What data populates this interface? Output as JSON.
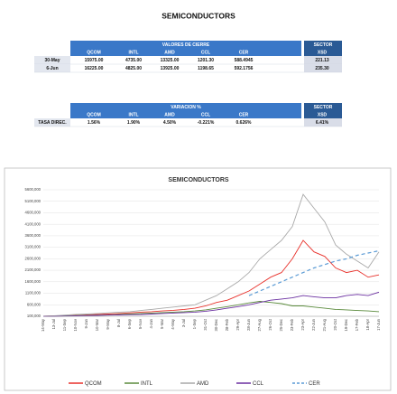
{
  "title": "SEMICONDUCTORS",
  "closing_table": {
    "header": "VALORES DE CIERRE",
    "sector_header": "SECTOR",
    "columns": [
      "QCOM",
      "INTL",
      "AMD",
      "CCL",
      "CER",
      "XSD"
    ],
    "rows": [
      {
        "label": "30-May",
        "cells": [
          "15975.00",
          "4735.00",
          "13325.00",
          "1201.30",
          "588.4945",
          "221.13"
        ]
      },
      {
        "label": "6-Jun",
        "cells": [
          "16225.00",
          "4825.00",
          "13925.00",
          "1198.65",
          "592.1756",
          "235.30"
        ]
      }
    ]
  },
  "variation_table": {
    "header": "VARIACION %",
    "sector_header": "SECTOR",
    "columns": [
      "QCOM",
      "INTL",
      "AMD",
      "CCL",
      "CER",
      "XSD"
    ],
    "rows": [
      {
        "label": "TASA DIREC.",
        "cells": [
          "1.56%",
          "1.90%",
          "4.50%",
          "-0.221%",
          "0.626%",
          "6.41%"
        ]
      }
    ]
  },
  "chart_data": {
    "type": "line",
    "title": "SEMICONDUCTORS",
    "categories": [
      "14-May",
      "13-Jul",
      "11-Sep",
      "10-Nov",
      "9-Jan",
      "10-Mar",
      "9-May",
      "8-Jul",
      "6-Sep",
      "5-Nov",
      "4-Jan",
      "5-Mar",
      "4-May",
      "3-Jul",
      "1-Sep",
      "31-Oct",
      "30-Dec",
      "28-Feb",
      "29-Apr",
      "28-Jun",
      "27-Aug",
      "26-Oct",
      "25-Dec",
      "23-Feb",
      "23-Apr",
      "22-Jun",
      "21-Aug",
      "20-Oct",
      "19-Dec",
      "17-Feb",
      "18-Apr",
      "17-Jun"
    ],
    "ylim": [
      100000,
      5600000
    ],
    "yticks": [
      {
        "value": 100000,
        "label": "100,000"
      },
      {
        "value": 600000,
        "label": "600,000"
      },
      {
        "value": 1100000,
        "label": "1100,000"
      },
      {
        "value": 1600000,
        "label": "1600,000"
      },
      {
        "value": 2100000,
        "label": "2100,000"
      },
      {
        "value": 2600000,
        "label": "2600,000"
      },
      {
        "value": 3100000,
        "label": "3100,000"
      },
      {
        "value": 3600000,
        "label": "3600,000"
      },
      {
        "value": 4100000,
        "label": "4100,000"
      },
      {
        "value": 4600000,
        "label": "4600,000"
      },
      {
        "value": 5100000,
        "label": "5100,000"
      },
      {
        "value": 5600000,
        "label": "5600,000"
      }
    ],
    "grid": true,
    "legend": "bottom",
    "series": [
      {
        "name": "QCOM",
        "color": "#e8302a",
        "dashed": false,
        "values": [
          100000,
          110000,
          120000,
          140000,
          160000,
          180000,
          200000,
          220000,
          250000,
          280000,
          300000,
          330000,
          360000,
          400000,
          450000,
          550000,
          700000,
          800000,
          1000000,
          1200000,
          1500000,
          1800000,
          2000000,
          2600000,
          3400000,
          2900000,
          2700000,
          2200000,
          2000000,
          2100000,
          1800000,
          1900000
        ]
      },
      {
        "name": "INTL",
        "color": "#5a8a3c",
        "dashed": false,
        "values": [
          100000,
          110000,
          120000,
          130000,
          140000,
          150000,
          160000,
          180000,
          200000,
          220000,
          240000,
          260000,
          280000,
          300000,
          330000,
          380000,
          450000,
          520000,
          600000,
          680000,
          750000,
          700000,
          650000,
          550000,
          550000,
          500000,
          450000,
          400000,
          380000,
          350000,
          330000,
          300000
        ]
      },
      {
        "name": "AMD",
        "color": "#a9a9a9",
        "dashed": false,
        "values": [
          100000,
          120000,
          150000,
          180000,
          200000,
          220000,
          250000,
          280000,
          300000,
          350000,
          400000,
          450000,
          500000,
          550000,
          600000,
          800000,
          1000000,
          1300000,
          1600000,
          2000000,
          2600000,
          3000000,
          3400000,
          4000000,
          5400000,
          4800000,
          4200000,
          3200000,
          2800000,
          2500000,
          2200000,
          2900000
        ]
      },
      {
        "name": "CCL",
        "color": "#6a2fa0",
        "dashed": false,
        "values": [
          100000,
          100000,
          110000,
          120000,
          130000,
          140000,
          150000,
          160000,
          170000,
          180000,
          200000,
          220000,
          240000,
          260000,
          280000,
          320000,
          380000,
          450000,
          520000,
          600000,
          700000,
          800000,
          850000,
          900000,
          1000000,
          950000,
          900000,
          900000,
          1000000,
          1050000,
          1000000,
          1150000
        ]
      },
      {
        "name": "CER",
        "color": "#5b9bd5",
        "dashed": true,
        "values": [
          null,
          null,
          null,
          null,
          null,
          null,
          null,
          null,
          null,
          null,
          null,
          null,
          null,
          null,
          null,
          null,
          null,
          null,
          null,
          1000000,
          1200000,
          1400000,
          1600000,
          1800000,
          2000000,
          2200000,
          2350000,
          2500000,
          2600000,
          2750000,
          2850000,
          2950000
        ]
      }
    ]
  }
}
